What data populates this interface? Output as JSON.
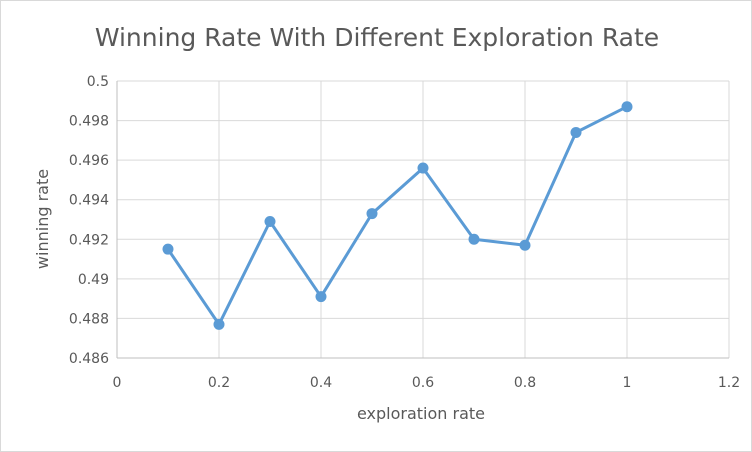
{
  "chart_data": {
    "type": "line",
    "title": "Winning Rate With Different Exploration Rate",
    "xlabel": "exploration rate",
    "ylabel": "winning rate",
    "xlim": [
      0,
      1.2
    ],
    "ylim": [
      0.486,
      0.5
    ],
    "x_ticks": [
      "0",
      "0.2",
      "0.4",
      "0.6",
      "0.8",
      "1",
      "1.2"
    ],
    "y_ticks": [
      "0.486",
      "0.488",
      "0.49",
      "0.492",
      "0.494",
      "0.496",
      "0.498",
      "0.5"
    ],
    "grid": true,
    "legend": "none",
    "series": [
      {
        "color": "#5b9bd5",
        "x": [
          0.1,
          0.2,
          0.3,
          0.4,
          0.5,
          0.6,
          0.7,
          0.8,
          0.9,
          1.0
        ],
        "y": [
          0.4915,
          0.4877,
          0.4929,
          0.4891,
          0.4933,
          0.4956,
          0.492,
          0.4917,
          0.4974,
          0.4987
        ]
      }
    ],
    "colors": {
      "grid": "#d9d9d9",
      "text": "#595959",
      "axis": "#bfbfbf"
    }
  }
}
